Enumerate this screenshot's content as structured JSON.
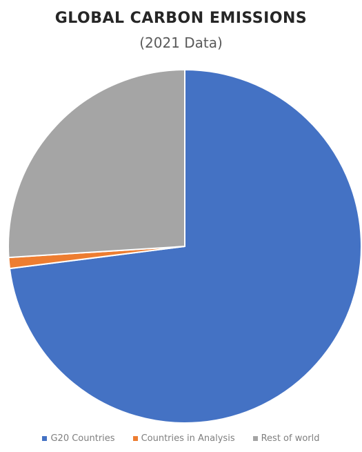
{
  "chart_data": {
    "type": "pie",
    "title": "GLOBAL CARBON EMISSIONS",
    "subtitle": "(2021 Data)",
    "categories": [
      "G20 Countries",
      "Countries in Analysis",
      "Rest of world"
    ],
    "values": [
      73,
      1,
      26
    ],
    "colors": [
      "#4472C4",
      "#ED7D31",
      "#A5A5A5"
    ],
    "start_angle_deg": 0,
    "direction": "clockwise",
    "legend": "bottom"
  }
}
